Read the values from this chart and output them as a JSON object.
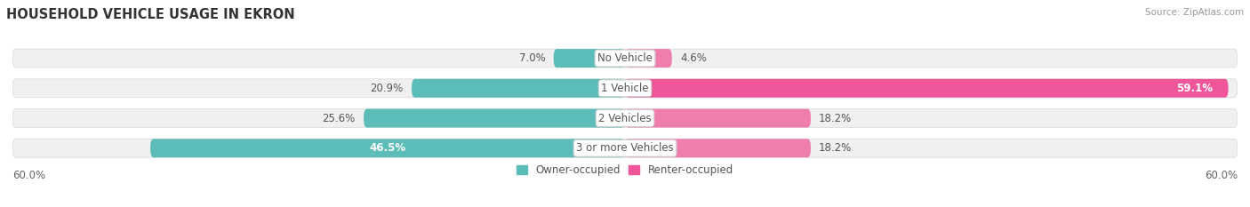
{
  "title": "HOUSEHOLD VEHICLE USAGE IN EKRON",
  "source": "Source: ZipAtlas.com",
  "categories": [
    "No Vehicle",
    "1 Vehicle",
    "2 Vehicles",
    "3 or more Vehicles"
  ],
  "owner_values": [
    7.0,
    20.9,
    25.6,
    46.5
  ],
  "renter_values": [
    4.6,
    59.1,
    18.2,
    18.2
  ],
  "owner_color": "#5bbcb8",
  "renter_color": "#f07ead",
  "renter_color_bright": "#f0569a",
  "bar_bg_color": "#f0f0f0",
  "bar_bg_border": "#e0e0e0",
  "axis_max": 60.0,
  "legend_owner": "Owner-occupied",
  "legend_renter": "Renter-occupied",
  "axis_label_left": "60.0%",
  "axis_label_right": "60.0%",
  "title_fontsize": 10.5,
  "label_fontsize": 8.5,
  "bar_height": 0.62,
  "background_color": "#ffffff"
}
